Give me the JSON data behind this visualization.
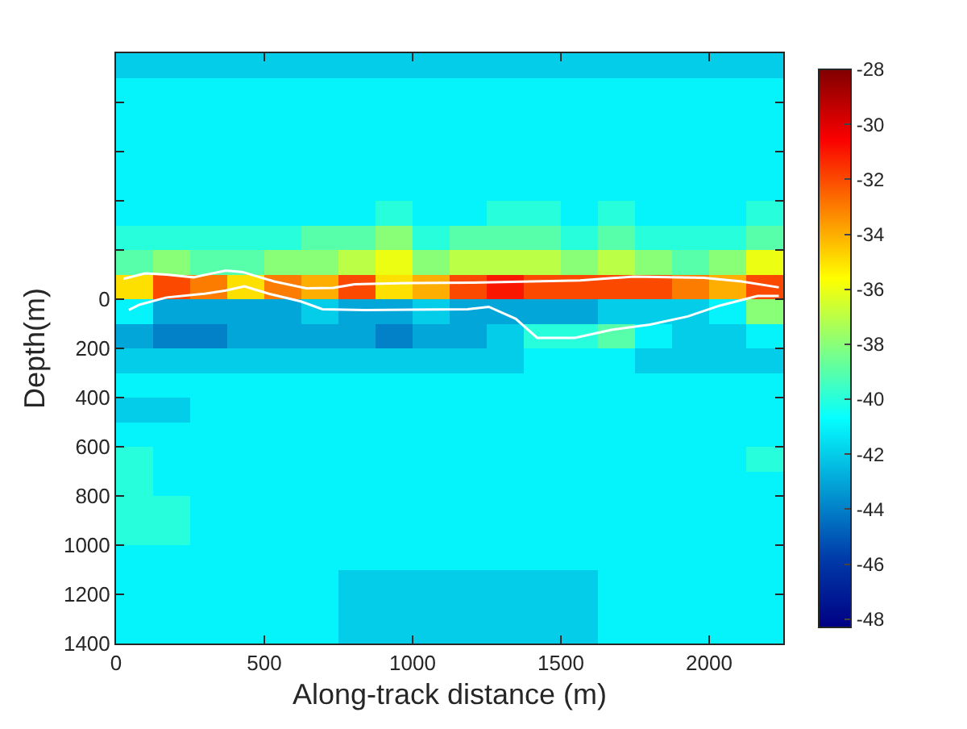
{
  "chart_data": {
    "type": "heatmap",
    "xlabel": "Along-track distance (m)",
    "ylabel": "Depth(m)",
    "x": [
      62.5,
      187.5,
      312.5,
      437.5,
      562.5,
      687.5,
      812.5,
      937.5,
      1062.5,
      1187.5,
      1312.5,
      1437.5,
      1562.5,
      1687.5,
      1812.5,
      1937.5,
      2062.5,
      2187.5
    ],
    "y": [
      -950,
      -850,
      -750,
      -650,
      -550,
      -450,
      -350,
      -250,
      -150,
      -50,
      50,
      150,
      250,
      350,
      450,
      550,
      650,
      750,
      850,
      950,
      1050,
      1150,
      1250,
      1350
    ],
    "cells": [
      [
        -42,
        -42,
        -42,
        -42,
        -42,
        -42,
        -42,
        -42,
        -42,
        -42,
        -42,
        -42,
        -42,
        -42,
        -42,
        -42,
        -42,
        -42
      ],
      [
        -41,
        -41,
        -41,
        -41,
        -41,
        -41,
        -41,
        -41,
        -41,
        -41,
        -41,
        -41,
        -41,
        -41,
        -41,
        -41,
        -41,
        -41
      ],
      [
        -41,
        -41,
        -41,
        -41,
        -41,
        -41,
        -41,
        -41,
        -41,
        -41,
        -41,
        -41,
        -41,
        -41,
        -41,
        -41,
        -41,
        -41
      ],
      [
        -41,
        -41,
        -41,
        -41,
        -41,
        -41,
        -41,
        -41,
        -41,
        -41,
        -41,
        -41,
        -41,
        -41,
        -41,
        -41,
        -41,
        -41
      ],
      [
        -41,
        -41,
        -41,
        -41,
        -41,
        -41,
        -41,
        -41,
        -41,
        -41,
        -41,
        -41,
        -41,
        -41,
        -41,
        -41,
        -41,
        -41
      ],
      [
        -41,
        -41,
        -41,
        -41,
        -41,
        -41,
        -41,
        -41,
        -41,
        -41,
        -41,
        -41,
        -41,
        -41,
        -41,
        -41,
        -41,
        -41
      ],
      [
        -41,
        -41,
        -41,
        -41,
        -41,
        -41,
        -41,
        -40,
        -41,
        -41,
        -40,
        -40,
        -41,
        -40,
        -41,
        -41,
        -41,
        -40
      ],
      [
        -40,
        -40,
        -40,
        -40,
        -40,
        -39,
        -39,
        -38,
        -40,
        -39,
        -39,
        -39,
        -40,
        -39,
        -40,
        -40,
        -40,
        -39
      ],
      [
        -39,
        -38,
        -39,
        -39,
        -38,
        -38,
        -37,
        -36,
        -38,
        -37,
        -37,
        -37,
        -38,
        -37,
        -38,
        -39,
        -38,
        -36
      ],
      [
        -35,
        -32,
        -33,
        -35,
        -33,
        -34,
        -32,
        -35,
        -34,
        -32,
        -31,
        -32,
        -32,
        -32,
        -32,
        -33,
        -34,
        -32
      ],
      [
        -41,
        -43,
        -43,
        -43,
        -43,
        -42,
        -43,
        -43,
        -42,
        -43,
        -43,
        -43,
        -43,
        -42,
        -42,
        -42,
        -41,
        -38
      ],
      [
        -43,
        -44,
        -44,
        -43,
        -43,
        -43,
        -43,
        -44,
        -43,
        -43,
        -42,
        -40,
        -40,
        -39,
        -41,
        -42,
        -42,
        -41
      ],
      [
        -42,
        -42,
        -42,
        -42,
        -42,
        -42,
        -42,
        -42,
        -42,
        -42,
        -42,
        -41,
        -41,
        -41,
        -42,
        -42,
        -42,
        -42
      ],
      [
        -41,
        -41,
        -41,
        -41,
        -41,
        -41,
        -41,
        -41,
        -41,
        -41,
        -41,
        -41,
        -41,
        -41,
        -41,
        -41,
        -41,
        -41
      ],
      [
        -42,
        -42,
        -41,
        -41,
        -41,
        -41,
        -41,
        -41,
        -41,
        -41,
        -41,
        -41,
        -41,
        -41,
        -41,
        -41,
        -41,
        -41
      ],
      [
        -41,
        -41,
        -41,
        -41,
        -41,
        -41,
        -41,
        -41,
        -41,
        -41,
        -41,
        -41,
        -41,
        -41,
        -41,
        -41,
        -41,
        -41
      ],
      [
        -40,
        -41,
        -41,
        -41,
        -41,
        -41,
        -41,
        -41,
        -41,
        -41,
        -41,
        -41,
        -41,
        -41,
        -41,
        -41,
        -41,
        -40
      ],
      [
        -40,
        -41,
        -41,
        -41,
        -41,
        -41,
        -41,
        -41,
        -41,
        -41,
        -41,
        -41,
        -41,
        -41,
        -41,
        -41,
        -41,
        -41
      ],
      [
        -40,
        -40,
        -41,
        -41,
        -41,
        -41,
        -41,
        -41,
        -41,
        -41,
        -41,
        -41,
        -41,
        -41,
        -41,
        -41,
        -41,
        -41
      ],
      [
        -40,
        -40,
        -41,
        -41,
        -41,
        -41,
        -41,
        -41,
        -41,
        -41,
        -41,
        -41,
        -41,
        -41,
        -41,
        -41,
        -41,
        -41
      ],
      [
        -41,
        -41,
        -41,
        -41,
        -41,
        -41,
        -41,
        -41,
        -41,
        -41,
        -41,
        -41,
        -41,
        -41,
        -41,
        -41,
        -41,
        -41
      ],
      [
        -41,
        -41,
        -41,
        -41,
        -41,
        -41,
        -42,
        -42,
        -42,
        -42,
        -42,
        -42,
        -42,
        -41,
        -41,
        -41,
        -41,
        -41
      ],
      [
        -41,
        -41,
        -41,
        -41,
        -41,
        -41,
        -42,
        -42,
        -42,
        -42,
        -42,
        -42,
        -42,
        -41,
        -41,
        -41,
        -41,
        -41
      ],
      [
        -41,
        -41,
        -41,
        -41,
        -41,
        -41,
        -42,
        -42,
        -42,
        -42,
        -42,
        -42,
        -42,
        -41,
        -41,
        -41,
        -41,
        -41
      ]
    ],
    "clim": [
      -48.3,
      -28
    ],
    "cticks": [
      -48,
      -46,
      -44,
      -42,
      -40,
      -38,
      -36,
      -34,
      -32,
      -30,
      -28
    ],
    "xlim": [
      0,
      2250
    ],
    "xticks": [
      0,
      500,
      1000,
      1500,
      2000
    ],
    "ylim": [
      1400,
      -1000
    ],
    "yticks": [
      {
        "value": -1000,
        "label": null
      },
      {
        "value": -800,
        "label": null
      },
      {
        "value": -600,
        "label": null
      },
      {
        "value": -400,
        "label": null
      },
      {
        "value": -200,
        "label": null
      },
      0,
      200,
      400,
      600,
      800,
      1000,
      1200,
      1400
    ],
    "series": [
      {
        "type": "line",
        "color": "#ffffff",
        "x": [
          25,
          98,
          170,
          261,
          370,
          424,
          533,
          641,
          732,
          804,
          949,
          1203,
          1565,
          1746,
          1982,
          2109,
          2235
        ],
        "values": [
          -83,
          -105,
          -100,
          -89,
          -116,
          -111,
          -72,
          -44,
          -46,
          -61,
          -65,
          -67,
          -76,
          -92,
          -87,
          -72,
          -48
        ]
      },
      {
        "type": "line",
        "color": "#ffffff",
        "x": [
          43,
          80,
          170,
          297,
          370,
          433,
          515,
          623,
          696,
          841,
          1185,
          1257,
          1348,
          1420,
          1547,
          1674,
          1801,
          1928,
          2036,
          2163,
          2235
        ],
        "values": [
          44,
          22,
          -7,
          -22,
          -35,
          -52,
          -22,
          9,
          41,
          44,
          41,
          31,
          80,
          157,
          157,
          124,
          103,
          70,
          26,
          -13,
          -13
        ]
      }
    ]
  }
}
